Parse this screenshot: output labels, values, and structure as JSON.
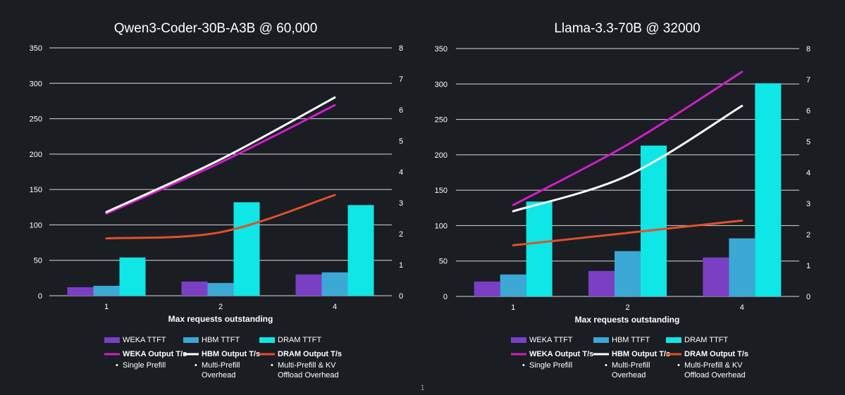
{
  "page_number": "1",
  "chart_data": [
    {
      "type": "bar+line",
      "title": "Qwen3-Coder-30B-A3B @ 60,000",
      "xlabel": "Max requests outstanding",
      "categories": [
        "1",
        "2",
        "4"
      ],
      "ylim": [
        0,
        350
      ],
      "yticks": [
        "0",
        "50",
        "100",
        "150",
        "200",
        "250",
        "300",
        "350"
      ],
      "y2lim": [
        0,
        8
      ],
      "y2ticks": [
        "0",
        "1",
        "2",
        "3",
        "4",
        "5",
        "6",
        "7",
        "8"
      ],
      "bar_series": [
        {
          "name": "WEKA TTFT",
          "color": "#7b3fc4",
          "values": [
            12,
            20,
            30
          ]
        },
        {
          "name": "HBM TTFT",
          "color": "#3ba8d6",
          "values": [
            14,
            18,
            33
          ]
        },
        {
          "name": "DRAM TTFT",
          "color": "#0fe6e6",
          "values": [
            54,
            132,
            128
          ]
        }
      ],
      "line_series": [
        {
          "name": "WEKA Output T/s",
          "note": "Single Prefill",
          "color": "#d01ec8",
          "values": [
            2.65,
            4.3,
            6.15
          ]
        },
        {
          "name": "HBM Output T/s",
          "note": "Multi-Prefill Overhead",
          "color": "#ffffff",
          "values": [
            2.7,
            4.4,
            6.4
          ]
        },
        {
          "name": "DRAM Output T/s",
          "note": "Multi-Prefill & KV Offload Overhead",
          "color": "#e0502a",
          "values": [
            1.85,
            2.05,
            3.25
          ]
        }
      ]
    },
    {
      "type": "bar+line",
      "title": "Llama-3.3-70B @ 32000",
      "xlabel": "Max requests outstanding",
      "categories": [
        "1",
        "2",
        "4"
      ],
      "ylim": [
        0,
        350
      ],
      "yticks": [
        "0",
        "50",
        "100",
        "150",
        "200",
        "250",
        "300",
        "350"
      ],
      "y2lim": [
        0,
        8
      ],
      "y2ticks": [
        "0",
        "1",
        "2",
        "3",
        "4",
        "5",
        "6",
        "7",
        "8"
      ],
      "bar_series": [
        {
          "name": "WEKA TTFT",
          "color": "#7b3fc4",
          "values": [
            21,
            36,
            55
          ]
        },
        {
          "name": "HBM TTFT",
          "color": "#3ba8d6",
          "values": [
            31,
            64,
            82
          ]
        },
        {
          "name": "DRAM TTFT",
          "color": "#0fe6e6",
          "values": [
            134,
            213,
            301
          ]
        }
      ],
      "line_series": [
        {
          "name": "WEKA Output T/s",
          "note": "Single Prefill",
          "color": "#d01ec8",
          "values": [
            2.95,
            4.9,
            7.25
          ]
        },
        {
          "name": "HBM Output T/s",
          "note": "Multi-Prefill Overhead",
          "color": "#ffffff",
          "values": [
            2.75,
            3.9,
            6.15
          ]
        },
        {
          "name": "DRAM Output T/s",
          "note": "Multi-Prefill & KV Offload Overhead",
          "color": "#e0502a",
          "values": [
            1.65,
            2.05,
            2.45
          ]
        }
      ]
    }
  ]
}
